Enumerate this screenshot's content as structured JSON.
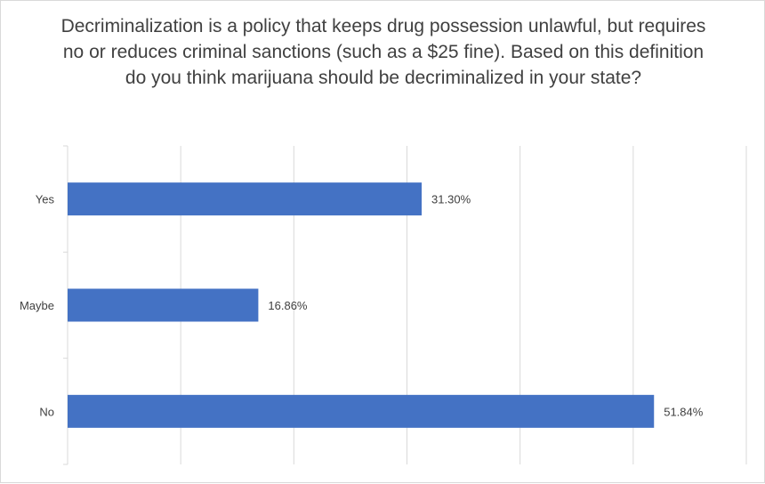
{
  "chart_data": {
    "type": "bar",
    "orientation": "horizontal",
    "title": "Decriminalization is a policy that keeps drug possession unlawful, but requires no or reduces criminal sanctions (such as a $25 fine). Based on this definition do you think marijuana should be decriminalized in your state?",
    "categories": [
      "Yes",
      "Maybe",
      "No"
    ],
    "values": [
      31.3,
      16.86,
      51.84
    ],
    "value_labels": [
      "31.30%",
      "16.86%",
      "51.84%"
    ],
    "xlim": [
      0,
      60
    ],
    "x_gridlines": [
      0,
      10,
      20,
      30,
      40,
      50,
      60
    ],
    "grid": true,
    "bar_color": "#4472C4",
    "legend": "none"
  }
}
